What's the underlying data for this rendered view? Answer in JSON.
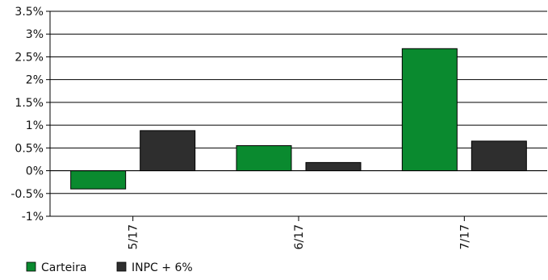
{
  "chart_data": {
    "type": "bar",
    "categories": [
      "5/17",
      "6/17",
      "7/17"
    ],
    "series": [
      {
        "name": "Carteira",
        "values": [
          -0.4,
          0.55,
          2.68
        ],
        "color": "#0a8a2f"
      },
      {
        "name": "INPC + 6%",
        "values": [
          0.88,
          0.18,
          0.65
        ],
        "color": "#2e2e2e"
      }
    ],
    "y_ticks": [
      "3.5%",
      "3%",
      "2.5%",
      "2%",
      "1.5%",
      "1%",
      "0.5%",
      "0%",
      "-0.5%",
      "-1%"
    ],
    "ylim": [
      -1,
      3.5
    ],
    "grid": true,
    "legend_position": "bottom-left",
    "title": "",
    "xlabel": "",
    "ylabel": ""
  }
}
